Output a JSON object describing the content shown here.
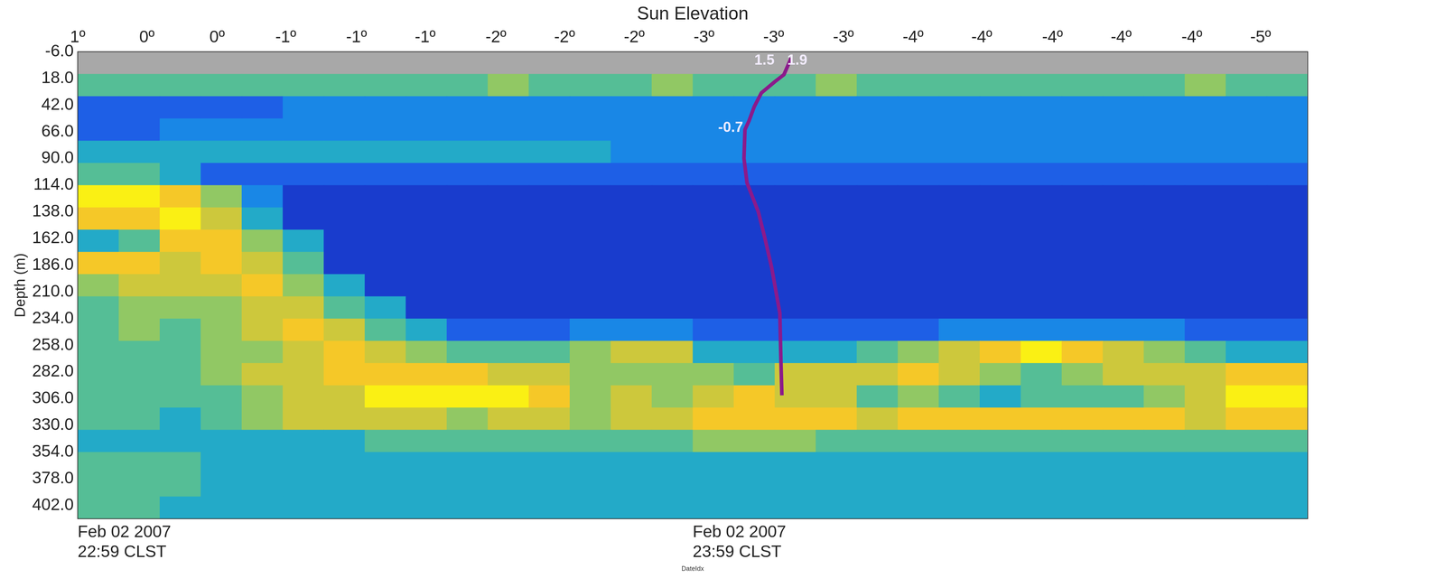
{
  "chart_data": {
    "type": "heatmap",
    "x_label": "DateIdx",
    "x2_label": "Sun Elevation",
    "y_label": "Depth (m)",
    "xlim": [
      0,
      120
    ],
    "xticks": [
      {
        "value": 0,
        "label": "Feb 02 2007\n22:59 CLST"
      },
      {
        "value": 60,
        "label": "Feb 02 2007\n23:59 CLST"
      }
    ],
    "x2lim": [
      0,
      120
    ],
    "x2ticks": [
      {
        "value": 0,
        "label": "1º"
      },
      {
        "value": 6.75,
        "label": "0º"
      },
      {
        "value": 13.6,
        "label": "0º"
      },
      {
        "value": 20.3,
        "label": "-1º"
      },
      {
        "value": 27.2,
        "label": "-1º"
      },
      {
        "value": 33.9,
        "label": "-1º"
      },
      {
        "value": 40.8,
        "label": "-2º"
      },
      {
        "value": 47.5,
        "label": "-2º"
      },
      {
        "value": 54.3,
        "label": "-2º"
      },
      {
        "value": 61.1,
        "label": "-3º"
      },
      {
        "value": 67.9,
        "label": "-3º"
      },
      {
        "value": 74.7,
        "label": "-3º"
      },
      {
        "value": 81.5,
        "label": "-4º"
      },
      {
        "value": 88.2,
        "label": "-4º"
      },
      {
        "value": 95.1,
        "label": "-4º"
      },
      {
        "value": 101.8,
        "label": "-4º"
      },
      {
        "value": 108.7,
        "label": "-4º"
      },
      {
        "value": 115.4,
        "label": "-5º"
      }
    ],
    "ylim": [
      -6,
      414
    ],
    "yticks": [
      {
        "value": -6,
        "label": "-6.0"
      },
      {
        "value": 18,
        "label": "18.0"
      },
      {
        "value": 42,
        "label": "42.0"
      },
      {
        "value": 66,
        "label": "66.0"
      },
      {
        "value": 90,
        "label": "90.0"
      },
      {
        "value": 114,
        "label": "114.0"
      },
      {
        "value": 138,
        "label": "138.0"
      },
      {
        "value": 162,
        "label": "162.0"
      },
      {
        "value": 186,
        "label": "186.0"
      },
      {
        "value": 210,
        "label": "210.0"
      },
      {
        "value": 234,
        "label": "234.0"
      },
      {
        "value": 258,
        "label": "258.0"
      },
      {
        "value": 282,
        "label": "282.0"
      },
      {
        "value": 306,
        "label": "306.0"
      },
      {
        "value": 330,
        "label": "330.0"
      },
      {
        "value": 354,
        "label": "354.0"
      },
      {
        "value": 378,
        "label": "378.0"
      },
      {
        "value": 402,
        "label": "402.0"
      }
    ],
    "grid": false,
    "cells": {
      "x_edges": [
        0,
        4,
        8,
        12,
        16,
        20,
        24,
        28,
        32,
        36,
        40,
        44,
        48,
        52,
        56,
        60,
        64,
        68,
        72,
        76,
        80,
        84,
        88,
        92,
        96,
        100,
        104,
        108,
        112,
        116,
        120
      ],
      "y_edges": [
        -6,
        14,
        34,
        54,
        74,
        94,
        114,
        134,
        154,
        174,
        194,
        214,
        234,
        254,
        274,
        294,
        314,
        334,
        354,
        374,
        394,
        414
      ],
      "color_range": [
        0,
        10
      ],
      "values": [
        [
          null,
          null,
          null,
          null,
          null,
          null,
          null,
          null,
          null,
          null,
          null,
          null,
          null,
          null,
          null,
          null,
          null,
          null,
          null,
          null,
          null,
          null,
          null,
          null,
          null,
          null,
          null,
          null,
          null,
          null
        ],
        [
          6,
          6,
          6,
          6,
          6,
          6,
          6,
          6,
          6,
          6,
          7,
          6,
          6,
          6,
          7,
          6,
          6,
          6,
          7,
          6,
          6,
          6,
          6,
          6,
          6,
          6,
          6,
          7,
          6,
          6
        ],
        [
          3,
          3,
          3,
          3,
          3,
          4,
          4,
          4,
          4,
          4,
          4,
          4,
          4,
          4,
          4,
          4,
          4,
          4,
          4,
          4,
          4,
          4,
          4,
          4,
          4,
          4,
          4,
          4,
          4,
          4
        ],
        [
          3,
          3,
          4,
          4,
          4,
          4,
          4,
          4,
          4,
          4,
          4,
          4,
          4,
          4,
          4,
          4,
          4,
          4,
          4,
          4,
          4,
          4,
          4,
          4,
          4,
          4,
          4,
          4,
          4,
          4
        ],
        [
          5,
          5,
          5,
          5,
          5,
          5,
          5,
          5,
          5,
          5,
          5,
          5,
          5,
          4,
          4,
          4,
          4,
          4,
          4,
          4,
          4,
          4,
          4,
          4,
          4,
          4,
          4,
          4,
          4,
          4
        ],
        [
          6,
          6,
          5,
          3,
          3,
          3,
          3,
          3,
          3,
          3,
          3,
          3,
          3,
          3,
          3,
          3,
          3,
          3,
          3,
          3,
          3,
          3,
          3,
          3,
          3,
          3,
          3,
          3,
          3,
          3
        ],
        [
          10,
          10,
          9,
          7,
          4,
          2,
          2,
          2,
          2,
          2,
          2,
          2,
          2,
          2,
          2,
          2,
          2,
          2,
          2,
          2,
          2,
          2,
          2,
          2,
          2,
          2,
          2,
          2,
          2,
          2
        ],
        [
          9,
          9,
          10,
          8,
          5,
          2,
          2,
          2,
          2,
          2,
          2,
          2,
          2,
          2,
          2,
          2,
          2,
          2,
          2,
          2,
          2,
          2,
          2,
          2,
          2,
          2,
          2,
          2,
          2,
          2
        ],
        [
          5,
          6,
          9,
          9,
          7,
          5,
          2,
          2,
          2,
          2,
          2,
          2,
          2,
          2,
          2,
          2,
          2,
          2,
          2,
          2,
          2,
          2,
          2,
          2,
          2,
          2,
          2,
          2,
          2,
          2
        ],
        [
          9,
          9,
          8,
          9,
          8,
          6,
          2,
          2,
          2,
          2,
          2,
          2,
          2,
          2,
          2,
          2,
          2,
          2,
          2,
          2,
          2,
          2,
          2,
          2,
          2,
          2,
          2,
          2,
          2,
          2
        ],
        [
          7,
          8,
          8,
          8,
          9,
          7,
          5,
          2,
          2,
          2,
          2,
          2,
          2,
          2,
          2,
          2,
          2,
          2,
          2,
          2,
          2,
          2,
          2,
          2,
          2,
          2,
          2,
          2,
          2,
          2
        ],
        [
          6,
          7,
          7,
          7,
          8,
          8,
          6,
          5,
          2,
          2,
          2,
          2,
          2,
          2,
          2,
          2,
          2,
          2,
          2,
          2,
          2,
          2,
          2,
          2,
          2,
          2,
          2,
          2,
          2,
          2
        ],
        [
          6,
          7,
          6,
          7,
          8,
          9,
          8,
          6,
          5,
          3,
          3,
          3,
          4,
          4,
          4,
          3,
          3,
          3,
          3,
          3,
          3,
          4,
          4,
          4,
          4,
          4,
          4,
          3,
          3,
          3
        ],
        [
          6,
          6,
          6,
          7,
          7,
          8,
          9,
          8,
          7,
          6,
          6,
          6,
          7,
          8,
          8,
          5,
          5,
          5,
          5,
          6,
          7,
          8,
          9,
          10,
          9,
          8,
          7,
          6,
          5,
          5
        ],
        [
          6,
          6,
          6,
          7,
          8,
          8,
          9,
          9,
          9,
          9,
          8,
          8,
          7,
          7,
          7,
          7,
          6,
          8,
          8,
          8,
          9,
          8,
          7,
          6,
          7,
          8,
          8,
          8,
          9,
          9
        ],
        [
          6,
          6,
          6,
          6,
          7,
          8,
          8,
          10,
          10,
          10,
          10,
          9,
          7,
          8,
          7,
          8,
          9,
          8,
          8,
          6,
          7,
          6,
          5,
          6,
          6,
          6,
          7,
          8,
          10,
          10
        ],
        [
          6,
          6,
          5,
          6,
          7,
          8,
          8,
          8,
          8,
          7,
          8,
          8,
          7,
          8,
          8,
          9,
          9,
          9,
          9,
          8,
          9,
          9,
          9,
          9,
          9,
          9,
          9,
          8,
          9,
          9
        ],
        [
          5,
          5,
          5,
          5,
          5,
          5,
          5,
          6,
          6,
          6,
          6,
          6,
          6,
          6,
          6,
          7,
          7,
          7,
          6,
          6,
          6,
          6,
          6,
          6,
          6,
          6,
          6,
          6,
          6,
          6
        ],
        [
          6,
          6,
          6,
          5,
          5,
          5,
          5,
          5,
          5,
          5,
          5,
          5,
          5,
          5,
          5,
          5,
          5,
          5,
          5,
          5,
          5,
          5,
          5,
          5,
          5,
          5,
          5,
          5,
          5,
          5
        ],
        [
          6,
          6,
          6,
          5,
          5,
          5,
          5,
          5,
          5,
          5,
          5,
          5,
          5,
          5,
          5,
          5,
          5,
          5,
          5,
          5,
          5,
          5,
          5,
          5,
          5,
          5,
          5,
          5,
          5,
          5
        ],
        [
          6,
          6,
          5,
          5,
          5,
          5,
          5,
          5,
          5,
          5,
          5,
          5,
          5,
          5,
          5,
          5,
          5,
          5,
          5,
          5,
          5,
          5,
          5,
          5,
          5,
          5,
          5,
          5,
          5,
          5
        ]
      ]
    },
    "series": [
      {
        "type": "line",
        "color": "#8b1a8b",
        "line_style": "solid",
        "marker": "none",
        "x": [
          69.6,
          68.9,
          68.0,
          66.7,
          66.0,
          65.5,
          65.1,
          65.0,
          65.3,
          66.4,
          67.0,
          67.7,
          68.5,
          68.6,
          68.7
        ],
        "values": [
          -0.2,
          14.6,
          21,
          31,
          43.5,
          56,
          64,
          90,
          112,
          138,
          160,
          188,
          229,
          270,
          303
        ]
      }
    ],
    "annotations": [
      {
        "text": "1.5",
        "x": 67.0,
        "y": 2
      },
      {
        "text": "1.9",
        "x": 70.2,
        "y": 2
      },
      {
        "text": "-0.7",
        "x": 63.7,
        "y": 62.5
      }
    ]
  }
}
